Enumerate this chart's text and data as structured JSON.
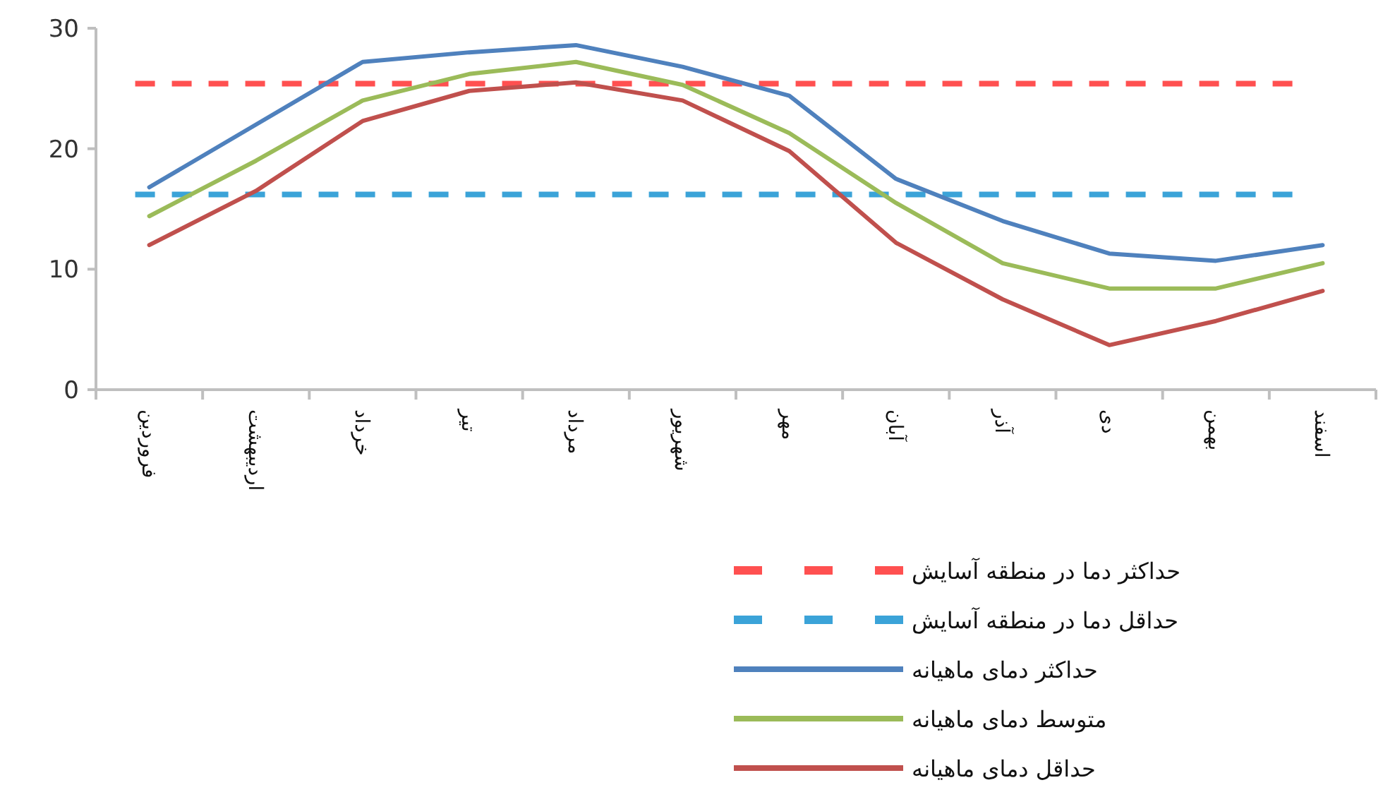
{
  "chart_data": {
    "type": "line",
    "categories": [
      "فروردین",
      "اردیبهشت",
      "خرداد",
      "تیر",
      "مرداد",
      "شهریور",
      "مهر",
      "آبان",
      "آذر",
      "دی",
      "بهمن",
      "اسفند"
    ],
    "series": [
      {
        "name": "حداکثر دمای ماهیانه",
        "color": "#4f81bd",
        "values": [
          16.8,
          22,
          27.2,
          28,
          28.6,
          26.8,
          24.4,
          17.5,
          14,
          11.3,
          10.7,
          12
        ]
      },
      {
        "name": "متوسط دمای ماهیانه",
        "color": "#9bbb59",
        "values": [
          14.4,
          19,
          24,
          26.2,
          27.2,
          25.3,
          21.3,
          15.5,
          10.5,
          8.4,
          8.4,
          10.5
        ]
      },
      {
        "name": "حداقل دمای ماهیانه",
        "color": "#c0504d",
        "values": [
          12,
          16.5,
          22.3,
          24.8,
          25.5,
          24,
          19.8,
          12.2,
          7.5,
          3.7,
          5.7,
          8.2
        ]
      }
    ],
    "ref_lines": [
      {
        "axis": "y",
        "value": 25.4,
        "label": "حداکثر دما در منطقه آسایش",
        "color": "#ff5050",
        "line_style": "dashed"
      },
      {
        "axis": "y",
        "value": 16.2,
        "label": "حداقل دما در منطقه آسایش",
        "color": "#3ba3d8",
        "line_style": "dashed"
      }
    ],
    "ylim": [
      0,
      30
    ],
    "yticks": [
      0,
      10,
      20,
      30
    ],
    "grid": false,
    "legend": "bottom right",
    "line_style": "solid",
    "marker": "none"
  }
}
